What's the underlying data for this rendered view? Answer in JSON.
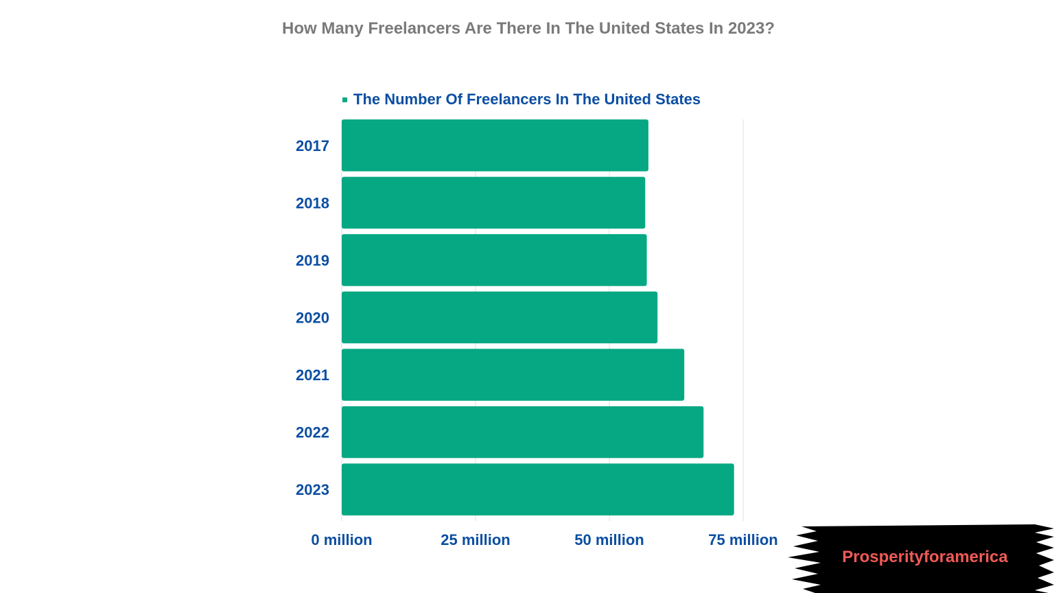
{
  "title": "How Many Freelancers Are There In The United States In 2023?",
  "legend": {
    "label": "The Number Of Freelancers In The United States",
    "color": "#06a884"
  },
  "colors": {
    "bar": "#06a884",
    "axis_text": "#0b4ea2",
    "title": "#7a7a7a",
    "grid": "#dddddd",
    "banner": "#000000",
    "banner_text": "#f05a57"
  },
  "chart_data": {
    "type": "bar",
    "orientation": "horizontal",
    "categories": [
      "2017",
      "2018",
      "2019",
      "2020",
      "2021",
      "2022",
      "2023"
    ],
    "series": [
      {
        "name": "The Number Of Freelancers In The United States",
        "values": [
          57.3,
          56.7,
          57.0,
          59.0,
          64.0,
          67.6,
          73.3
        ]
      }
    ],
    "xticks": [
      {
        "value": 0,
        "label": "0 million"
      },
      {
        "value": 25,
        "label": "25 million"
      },
      {
        "value": 50,
        "label": "50 million"
      },
      {
        "value": 75,
        "label": "75 million"
      }
    ],
    "xlim": [
      0,
      75
    ],
    "grid": true,
    "legend_position": "top"
  },
  "watermark": {
    "text": "Prosperityforamerica"
  }
}
